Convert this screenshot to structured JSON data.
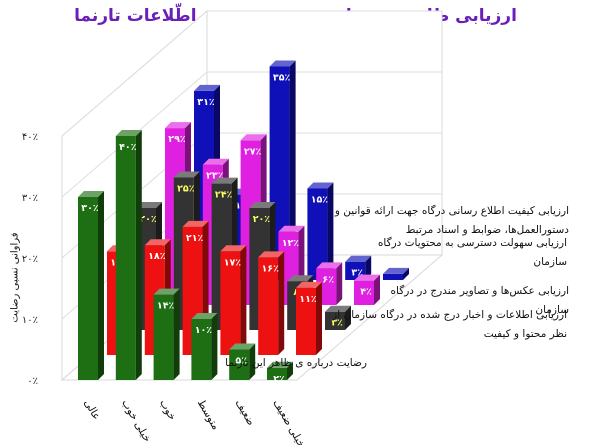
{
  "chart_data": {
    "type": "bar",
    "title": "ارزیابی ظاهر، محتوا و دسترس پذیری اطّلاعات تارنما",
    "xlabel": "",
    "ylabel": "فراوانی نسبی رضایت",
    "ylim": [
      0,
      40
    ],
    "yticks": [
      "۰٪",
      "۱۰٪",
      "۲۰٪",
      "۳۰٪",
      "۴۰٪"
    ],
    "categories": [
      "عالی",
      "خیلی خوب",
      "خوب",
      "متوسط",
      "ضعیف",
      "خیلی ضعیف"
    ],
    "series": [
      {
        "name": "رضایت درباره ی ظاهر این تارنما",
        "color": "#1e6e14",
        "values": [
          30,
          40,
          14,
          10,
          5,
          2
        ],
        "labels": [
          "۳۰٪",
          "۴۰٪",
          "۱۴٪",
          "۱۰٪",
          "۵٪",
          "۲٪"
        ]
      },
      {
        "name": "ارزیابی اطلاعات و اخبار درج شده در درگاه سازمان از نظر محتوا و کیفیت",
        "color": "#ee1111",
        "values": [
          17,
          18,
          21,
          17,
          16,
          11
        ],
        "labels": [
          "۱۷٪",
          "۱۸٪",
          "۲۱٪",
          "۱۷٪",
          "۱۶٪",
          "۱۱٪"
        ]
      },
      {
        "name": "ارزیابی عکس‌ها و تصاویر مندرج در درگاه سازمان",
        "color": "#333333",
        "values": [
          20,
          25,
          24,
          20,
          8,
          3
        ],
        "labels": [
          "۲۰٪",
          "۲۵٪",
          "۲۴٪",
          "۲۰٪",
          "۸٪",
          "۳٪"
        ]
      },
      {
        "name": "ارزیابی سهولت دسترسی به محتویات درگاه سازمان",
        "color": "#e020e0",
        "values": [
          29,
          23,
          27,
          12,
          6,
          4
        ],
        "labels": [
          "۲۹٪",
          "۲۳٪",
          "۲۷٪",
          "۱۲٪",
          "۶٪",
          "۴٪"
        ]
      },
      {
        "name": "ارزیابی کیفیت اطلاع رسانی درگاه جهت ارائه قوانین و دستورالعمل‌ها، ضوابط و اسناد مرتبط",
        "color": "#1010b8",
        "values": [
          31,
          14,
          35,
          15,
          3,
          1
        ],
        "labels": [
          "۳۱٪",
          "۱۴٪",
          "۳۵٪",
          "۱۵٪",
          "۳٪",
          "۱٪"
        ]
      }
    ],
    "grid": true,
    "legend": "right"
  }
}
